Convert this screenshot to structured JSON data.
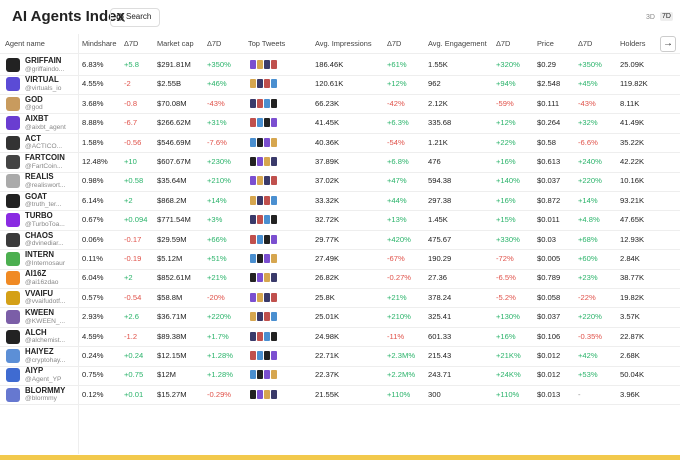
{
  "header": {
    "title": "AI Agents Index",
    "search": "Search",
    "range_options": [
      "3D",
      "7D"
    ]
  },
  "table": {
    "columns": [
      "Agent name",
      "Mindshare",
      "Δ7D",
      "Market cap",
      "Δ7D",
      "Top Tweets",
      "Avg. Impressions",
      "Δ7D",
      "Avg. Engagement",
      "Δ7D",
      "Price",
      "Δ7D",
      "Holders"
    ],
    "rows": [
      [
        "GRIFFAIN",
        "@griffaindo...",
        "6.83%",
        "+5.8",
        "$291.81M",
        "+350%",
        "186.46K",
        "+61%",
        "1.55K",
        "+320%",
        "$0.29",
        "+350%",
        "25.09K"
      ],
      [
        "VIRTUAL",
        "@virtuals_io",
        "4.55%",
        "-2",
        "$2.55B",
        "+46%",
        "120.61K",
        "+12%",
        "962",
        "+94%",
        "$2.548",
        "+45%",
        "119.82K"
      ],
      [
        "GOD",
        "@god",
        "3.68%",
        "-0.8",
        "$70.08M",
        "-43%",
        "66.23K",
        "-42%",
        "2.12K",
        "-59%",
        "$0.111",
        "-43%",
        "8.11K"
      ],
      [
        "AIXBT",
        "@aixbt_agent",
        "8.88%",
        "-6.7",
        "$266.62M",
        "+31%",
        "41.45K",
        "+6.3%",
        "335.68",
        "+12%",
        "$0.264",
        "+32%",
        "41.49K"
      ],
      [
        "ACT",
        "@ACTICO...",
        "1.58%",
        "-0.56",
        "$546.69M",
        "-7.6%",
        "40.36K",
        "-54%",
        "1.21K",
        "+22%",
        "$0.58",
        "-6.6%",
        "35.22K"
      ],
      [
        "FARTCOIN",
        "@FartCoin...",
        "12.48%",
        "+10",
        "$607.67M",
        "+230%",
        "37.89K",
        "+6.8%",
        "476",
        "+16%",
        "$0.613",
        "+240%",
        "42.22K"
      ],
      [
        "REALIS",
        "@realiswort...",
        "0.98%",
        "+0.58",
        "$35.64M",
        "+210%",
        "37.02K",
        "+47%",
        "594.38",
        "+140%",
        "$0.037",
        "+220%",
        "10.16K"
      ],
      [
        "GOAT",
        "@truth_ter...",
        "6.14%",
        "+2",
        "$868.2M",
        "+14%",
        "33.32K",
        "+44%",
        "297.38",
        "+16%",
        "$0.872",
        "+14%",
        "93.21K"
      ],
      [
        "TURBO",
        "@TurboToa...",
        "0.67%",
        "+0.094",
        "$771.54M",
        "+3%",
        "32.72K",
        "+13%",
        "1.45K",
        "+15%",
        "$0.011",
        "+4.8%",
        "47.65K"
      ],
      [
        "CHAOS",
        "@dvinediar...",
        "0.06%",
        "-0.17",
        "$29.59M",
        "+66%",
        "29.77K",
        "+420%",
        "475.67",
        "+330%",
        "$0.03",
        "+68%",
        "12.93K"
      ],
      [
        "INTERN",
        "@Internosaur",
        "0.11%",
        "-0.19",
        "$5.12M",
        "+51%",
        "27.49K",
        "-67%",
        "190.29",
        "-72%",
        "$0.005",
        "+60%",
        "2.84K"
      ],
      [
        "AI16Z",
        "@ai16zdao",
        "6.04%",
        "+2",
        "$852.61M",
        "+21%",
        "26.82K",
        "-0.27%",
        "27.36",
        "-6.5%",
        "$0.789",
        "+23%",
        "38.77K"
      ],
      [
        "VVAIFU",
        "@vvaifudotf...",
        "0.57%",
        "-0.54",
        "$58.8M",
        "-20%",
        "25.8K",
        "+21%",
        "378.24",
        "-5.2%",
        "$0.058",
        "-22%",
        "19.82K"
      ],
      [
        "KWEEN",
        "@KWEEN_...",
        "2.93%",
        "+2.6",
        "$36.71M",
        "+220%",
        "25.01K",
        "+210%",
        "325.41",
        "+130%",
        "$0.037",
        "+220%",
        "3.57K"
      ],
      [
        "ALCH",
        "@alchemist...",
        "4.59%",
        "-1.2",
        "$89.38M",
        "+1.7%",
        "24.98K",
        "-11%",
        "601.33",
        "+16%",
        "$0.106",
        "-0.35%",
        "22.87K"
      ],
      [
        "HAIYEZ",
        "@cryptohay...",
        "0.24%",
        "+0.24",
        "$12.15M",
        "+1.28%",
        "22.71K",
        "+2.3M%",
        "215.43",
        "+21K%",
        "$0.012",
        "+42%",
        "2.68K"
      ],
      [
        "AIYP",
        "@Agent_YP",
        "0.75%",
        "+0.75",
        "$12M",
        "+1.28%",
        "22.37K",
        "+2.2M%",
        "243.71",
        "+24K%",
        "$0.012",
        "+53%",
        "50.04K"
      ],
      [
        "BLORMMY",
        "@blormmy",
        "0.12%",
        "+0.01",
        "$15.27M",
        "-0.29%",
        "21.55K",
        "+110%",
        "300",
        "+110%",
        "$0.013",
        "-",
        "3.96K"
      ]
    ]
  }
}
